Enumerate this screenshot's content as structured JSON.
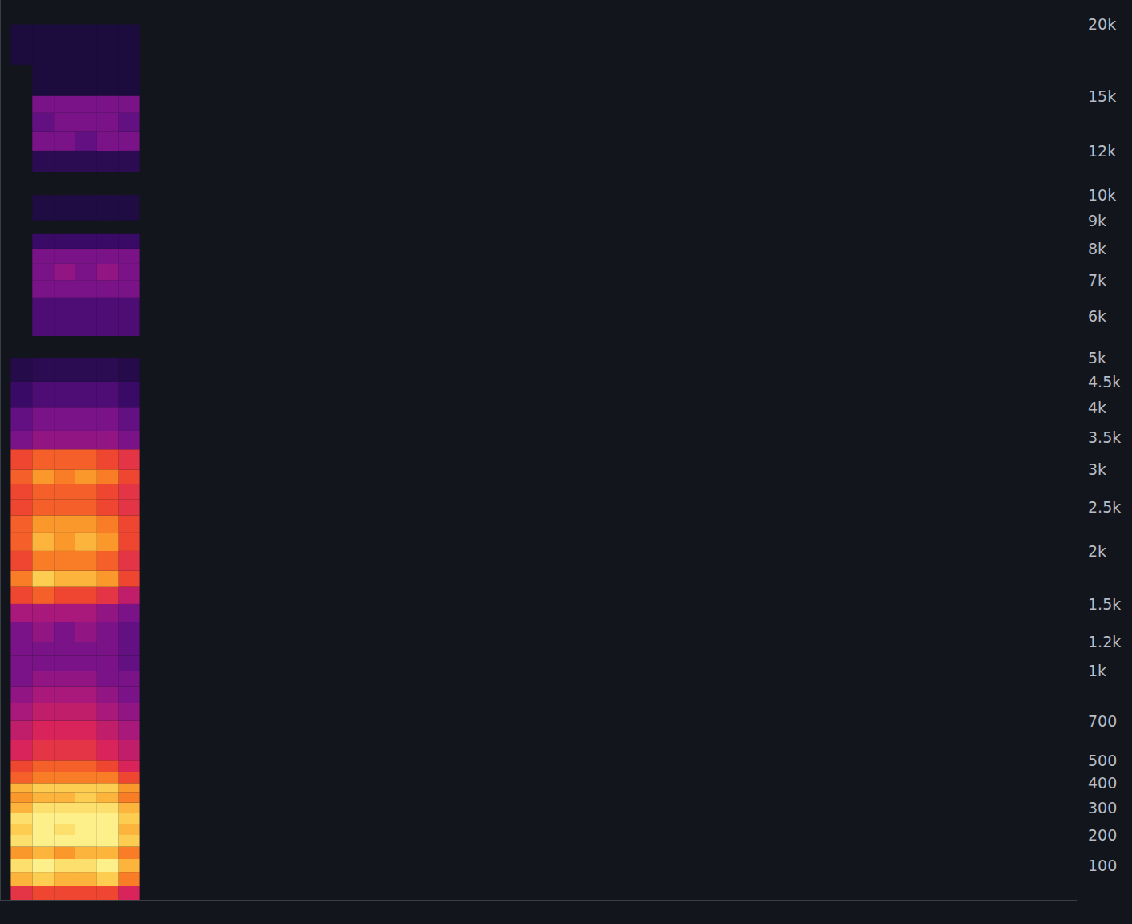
{
  "chart_data": {
    "type": "heatmap",
    "xlim": [
      0,
      100
    ],
    "ylim": [
      0,
      22050
    ],
    "yticks": [
      {
        "value": 20000,
        "label": "20k"
      },
      {
        "value": 15000,
        "label": "15k"
      },
      {
        "value": 12000,
        "label": "12k"
      },
      {
        "value": 10000,
        "label": "10k"
      },
      {
        "value": 9000,
        "label": "9k"
      },
      {
        "value": 8000,
        "label": "8k"
      },
      {
        "value": 7000,
        "label": "7k"
      },
      {
        "value": 6000,
        "label": "6k"
      },
      {
        "value": 5000,
        "label": "5k"
      },
      {
        "value": 4500,
        "label": "4.5k"
      },
      {
        "value": 4000,
        "label": "4k"
      },
      {
        "value": 3500,
        "label": "3.5k"
      },
      {
        "value": 3000,
        "label": "3k"
      },
      {
        "value": 2500,
        "label": "2.5k"
      },
      {
        "value": 2000,
        "label": "2k"
      },
      {
        "value": 1500,
        "label": "1.5k"
      },
      {
        "value": 1200,
        "label": "1.2k"
      },
      {
        "value": 1000,
        "label": "1k"
      },
      700,
      500,
      400,
      300,
      200,
      100
    ],
    "tick_labels": "y",
    "grid": false,
    "x_bins": [
      1,
      3,
      5,
      7,
      9,
      11,
      13
    ],
    "y_bins": [
      0,
      40,
      80,
      120,
      160,
      200,
      240,
      280,
      320,
      360,
      400,
      450,
      500,
      600,
      700,
      800,
      900,
      1000,
      1100,
      1200,
      1350,
      1500,
      1650,
      1800,
      2000,
      2200,
      2400,
      2600,
      2800,
      3000,
      3300,
      3600,
      4000,
      4500,
      5000,
      5500,
      6000,
      6500,
      7000,
      7500,
      8000,
      8500,
      9000,
      10000,
      11000,
      12000,
      13000,
      14000,
      15000,
      17000,
      20000,
      22050
    ],
    "cells": [
      [
        0.55,
        0.6,
        0.6,
        0.6,
        0.6,
        0.5
      ],
      [
        0.8,
        0.85,
        0.8,
        0.8,
        0.85,
        0.7
      ],
      [
        0.9,
        0.95,
        0.9,
        0.9,
        0.95,
        0.8
      ],
      [
        0.75,
        0.8,
        0.75,
        0.8,
        0.8,
        0.7
      ],
      [
        0.9,
        0.95,
        0.95,
        0.95,
        0.95,
        0.85
      ],
      [
        0.85,
        0.95,
        0.9,
        0.95,
        0.95,
        0.8
      ],
      [
        0.9,
        0.95,
        0.95,
        0.95,
        0.95,
        0.85
      ],
      [
        0.8,
        0.9,
        0.9,
        0.9,
        0.9,
        0.8
      ],
      [
        0.75,
        0.8,
        0.8,
        0.85,
        0.8,
        0.7
      ],
      [
        0.8,
        0.85,
        0.85,
        0.85,
        0.85,
        0.75
      ],
      [
        0.65,
        0.7,
        0.7,
        0.7,
        0.7,
        0.6
      ],
      [
        0.6,
        0.65,
        0.65,
        0.65,
        0.6,
        0.5
      ],
      [
        0.5,
        0.55,
        0.55,
        0.55,
        0.5,
        0.45
      ],
      [
        0.45,
        0.5,
        0.5,
        0.5,
        0.45,
        0.4
      ],
      [
        0.4,
        0.45,
        0.45,
        0.45,
        0.4,
        0.35
      ],
      [
        0.35,
        0.4,
        0.4,
        0.4,
        0.35,
        0.3
      ],
      [
        0.3,
        0.35,
        0.35,
        0.35,
        0.3,
        0.3
      ],
      [
        0.3,
        0.3,
        0.3,
        0.3,
        0.3,
        0.25
      ],
      [
        0.3,
        0.3,
        0.3,
        0.3,
        0.3,
        0.25
      ],
      [
        0.3,
        0.35,
        0.3,
        0.35,
        0.3,
        0.25
      ],
      [
        0.4,
        0.4,
        0.4,
        0.4,
        0.35,
        0.3
      ],
      [
        0.6,
        0.65,
        0.6,
        0.6,
        0.55,
        0.45
      ],
      [
        0.7,
        0.85,
        0.8,
        0.8,
        0.75,
        0.6
      ],
      [
        0.6,
        0.7,
        0.7,
        0.7,
        0.65,
        0.55
      ],
      [
        0.65,
        0.8,
        0.75,
        0.8,
        0.75,
        0.6
      ],
      [
        0.65,
        0.75,
        0.75,
        0.75,
        0.7,
        0.6
      ],
      [
        0.6,
        0.65,
        0.65,
        0.65,
        0.6,
        0.55
      ],
      [
        0.6,
        0.65,
        0.65,
        0.65,
        0.6,
        0.55
      ],
      [
        0.65,
        0.75,
        0.7,
        0.75,
        0.7,
        0.6
      ],
      [
        0.6,
        0.65,
        0.65,
        0.65,
        0.6,
        0.55
      ],
      [
        0.3,
        0.35,
        0.35,
        0.35,
        0.35,
        0.3
      ],
      [
        0.25,
        0.3,
        0.3,
        0.3,
        0.3,
        0.25
      ],
      [
        0.15,
        0.2,
        0.2,
        0.2,
        0.2,
        0.15
      ],
      [
        0.08,
        0.1,
        0.1,
        0.1,
        0.1,
        0.08
      ],
      [
        null,
        null,
        null,
        null,
        null,
        null
      ],
      [
        null,
        0.2,
        0.2,
        0.2,
        0.2,
        0.2
      ],
      [
        null,
        0.2,
        0.2,
        0.2,
        0.2,
        0.2
      ],
      [
        null,
        0.3,
        0.3,
        0.3,
        0.3,
        0.3
      ],
      [
        null,
        0.3,
        0.35,
        0.3,
        0.35,
        0.3
      ],
      [
        null,
        0.3,
        0.3,
        0.3,
        0.3,
        0.3
      ],
      [
        null,
        0.15,
        0.15,
        0.15,
        0.15,
        0.15
      ],
      [
        null,
        null,
        null,
        null,
        null,
        null
      ],
      [
        null,
        0.06,
        0.06,
        0.06,
        0.06,
        0.06
      ],
      [
        null,
        null,
        null,
        null,
        null,
        null
      ],
      [
        null,
        0.1,
        0.1,
        0.1,
        0.1,
        0.1
      ],
      [
        null,
        0.3,
        0.3,
        0.25,
        0.3,
        0.3
      ],
      [
        null,
        0.25,
        0.3,
        0.3,
        0.3,
        0.25
      ],
      [
        null,
        0.3,
        0.3,
        0.3,
        0.3,
        0.3
      ],
      [
        null,
        0.05,
        0.05,
        0.05,
        0.05,
        0.05
      ],
      [
        0.05,
        0.05,
        0.05,
        0.05,
        0.05,
        0.05
      ],
      [
        null,
        null,
        null,
        null,
        null,
        null
      ]
    ]
  }
}
